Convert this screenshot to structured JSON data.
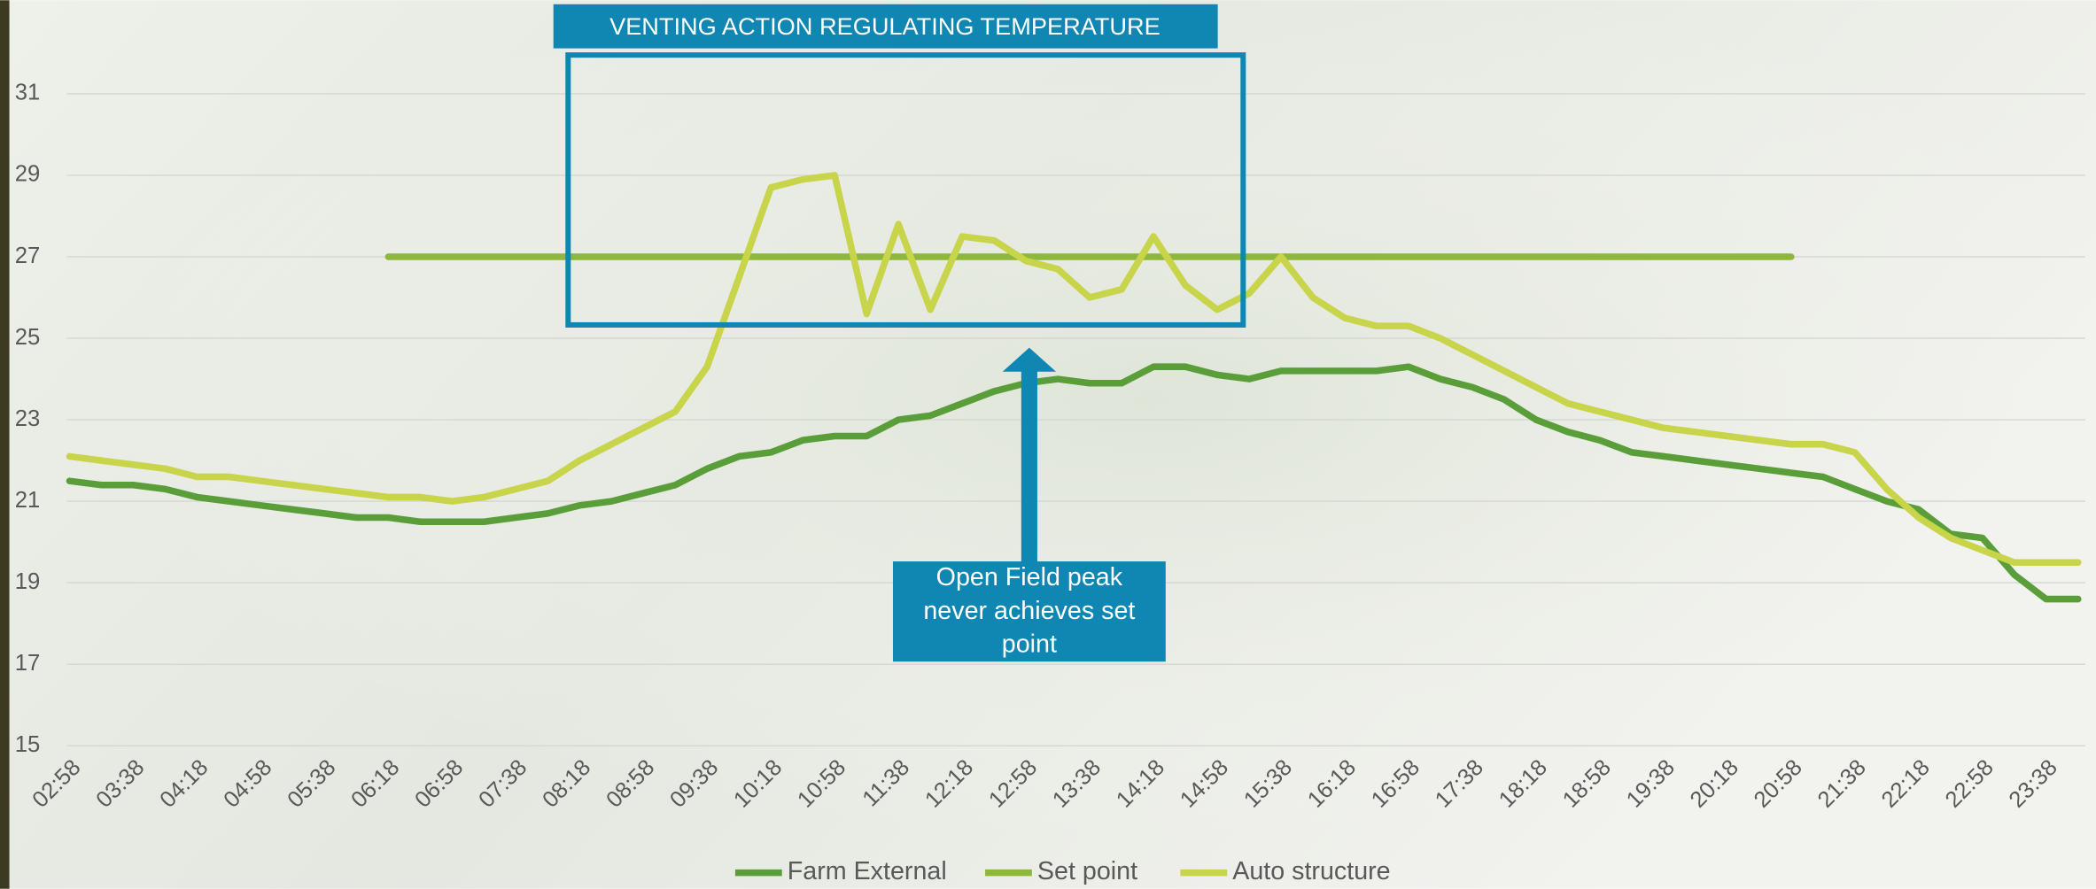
{
  "chart_data": {
    "type": "line",
    "annotations": [
      "VENTING ACTION REGULATING TEMPERATURE",
      "Open Field peak never achieves set point"
    ],
    "categories": [
      "02:58",
      null,
      "03:38",
      null,
      "04:18",
      null,
      "04:58",
      null,
      "05:38",
      null,
      "06:18",
      null,
      "06:58",
      null,
      "07:38",
      null,
      "08:18",
      null,
      "08:58",
      null,
      "09:38",
      null,
      "10:18",
      null,
      "10:58",
      null,
      "11:38",
      null,
      "12:18",
      null,
      "12:58",
      null,
      "13:38",
      null,
      "14:18",
      null,
      "14:58",
      null,
      "15:38",
      null,
      "16:18",
      null,
      "16:58",
      null,
      "17:38",
      null,
      "18:18",
      null,
      "18:58",
      null,
      "19:38",
      null,
      "20:18",
      null,
      "20:58",
      null,
      "21:38",
      null,
      "22:18",
      null,
      "22:58",
      null,
      "23:38",
      null
    ],
    "series": [
      {
        "name": "Farm External",
        "color": "#5a9e3a",
        "values": [
          21.5,
          21.4,
          21.4,
          21.3,
          21.1,
          21.0,
          20.9,
          20.8,
          20.7,
          20.6,
          20.6,
          20.5,
          20.5,
          20.5,
          20.6,
          20.7,
          20.9,
          21.0,
          21.2,
          21.4,
          21.8,
          22.1,
          22.2,
          22.5,
          22.6,
          22.6,
          23.0,
          23.1,
          23.4,
          23.7,
          23.9,
          24.0,
          23.9,
          23.9,
          24.3,
          24.3,
          24.1,
          24.0,
          24.2,
          24.2,
          24.2,
          24.2,
          24.3,
          24.0,
          23.8,
          23.5,
          23.0,
          22.7,
          22.5,
          22.2,
          22.1,
          22.0,
          21.9,
          21.8,
          21.7,
          21.6,
          21.3,
          21.0,
          20.8,
          20.2,
          20.1,
          19.2,
          18.6,
          18.6
        ]
      },
      {
        "name": "Set point",
        "color": "#8db83c",
        "values": [
          null,
          null,
          null,
          null,
          null,
          null,
          null,
          null,
          null,
          null,
          27,
          27,
          27,
          27,
          27,
          27,
          27,
          27,
          27,
          27,
          27,
          27,
          27,
          27,
          27,
          27,
          27,
          27,
          27,
          27,
          27,
          27,
          27,
          27,
          27,
          27,
          27,
          27,
          27,
          27,
          27,
          27,
          27,
          27,
          27,
          27,
          27,
          27,
          27,
          27,
          27,
          27,
          27,
          27,
          27,
          null,
          null,
          null,
          null,
          null,
          null,
          null,
          null,
          null
        ]
      },
      {
        "name": "Auto structure",
        "color": "#c8d44a",
        "values": [
          22.1,
          22.0,
          21.9,
          21.8,
          21.6,
          21.6,
          21.5,
          21.4,
          21.3,
          21.2,
          21.1,
          21.1,
          21.0,
          21.1,
          21.3,
          21.5,
          22.0,
          22.4,
          22.8,
          23.2,
          24.3,
          26.5,
          28.7,
          28.9,
          29.0,
          25.6,
          27.8,
          25.7,
          27.5,
          27.4,
          26.9,
          26.7,
          26.0,
          26.2,
          27.5,
          26.3,
          25.7,
          26.1,
          27.0,
          26.0,
          25.5,
          25.3,
          25.3,
          25.0,
          24.6,
          24.2,
          23.8,
          23.4,
          23.2,
          23.0,
          22.8,
          22.7,
          22.6,
          22.5,
          22.4,
          22.4,
          22.2,
          21.3,
          20.6,
          20.1,
          19.8,
          19.5,
          19.5,
          19.5
        ]
      }
    ],
    "ylim": [
      15,
      33
    ],
    "yticks": [
      15,
      17,
      19,
      21,
      23,
      25,
      27,
      29,
      31
    ],
    "grid": true,
    "legend": "bottom"
  }
}
